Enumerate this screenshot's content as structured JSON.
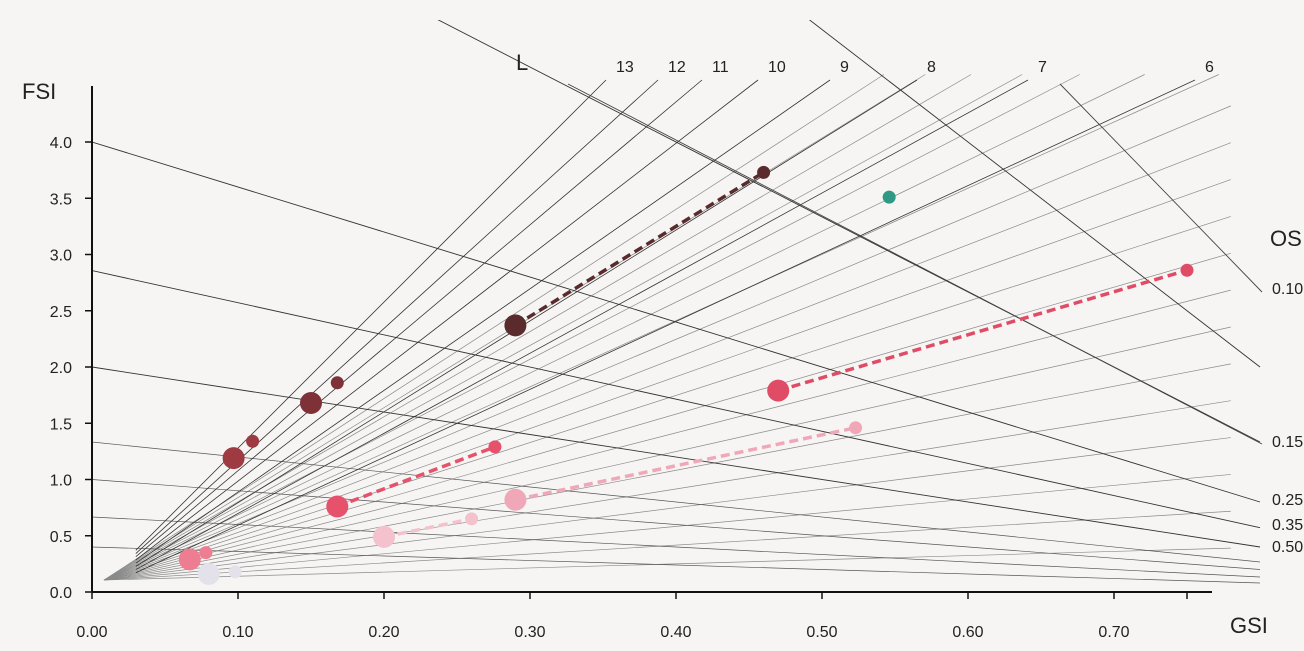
{
  "chart_data": {
    "type": "scatter",
    "title": "",
    "xlabel": "GSI",
    "ylabel": "FSI",
    "xlim": [
      0,
      0.8
    ],
    "ylim": [
      0,
      4.4
    ],
    "x_ticks": [
      "0.00",
      "0.10",
      "0.20",
      "0.30",
      "0.40",
      "0.50",
      "0.60",
      "0.70"
    ],
    "y_ticks": [
      "0.0",
      "0.5",
      "1.0",
      "1.5",
      "2.0",
      "2.5",
      "3.0",
      "3.5",
      "4.0"
    ],
    "L_axis_label": "L",
    "L_lines": [
      {
        "label": "13",
        "value": 13
      },
      {
        "label": "12",
        "value": 12
      },
      {
        "label": "11",
        "value": 11
      },
      {
        "label": "10",
        "value": 10
      },
      {
        "label": "9",
        "value": 9
      },
      {
        "label": "8",
        "value": 8
      },
      {
        "label": "7",
        "value": 7
      },
      {
        "label": "6",
        "value": 6
      }
    ],
    "OSR_axis_label": "OS",
    "OSR_lines": [
      {
        "label": "0.10",
        "value": 0.1
      },
      {
        "label": "0.15",
        "value": 0.15
      },
      {
        "label": "0.25",
        "value": 0.25
      },
      {
        "label": "0.35",
        "value": 0.35
      },
      {
        "label": "0.50",
        "value": 0.5
      }
    ],
    "series": [
      {
        "color": "#5a2a2c",
        "dashed": true,
        "points": [
          {
            "x": 0.29,
            "y": 2.37,
            "size": "large"
          },
          {
            "x": 0.46,
            "y": 3.73,
            "size": "small"
          }
        ]
      },
      {
        "color": "#7e3238",
        "dashed": false,
        "points": [
          {
            "x": 0.15,
            "y": 1.68,
            "size": "large"
          },
          {
            "x": 0.168,
            "y": 1.86,
            "size": "small"
          }
        ]
      },
      {
        "color": "#9e3a42",
        "dashed": false,
        "points": [
          {
            "x": 0.097,
            "y": 1.19,
            "size": "large"
          },
          {
            "x": 0.11,
            "y": 1.34,
            "size": "small"
          }
        ]
      },
      {
        "color": "#e04c66",
        "dashed": true,
        "points": [
          {
            "x": 0.47,
            "y": 1.79,
            "size": "large"
          },
          {
            "x": 0.75,
            "y": 2.86,
            "size": "small"
          }
        ]
      },
      {
        "color": "#e6526c",
        "dashed": true,
        "points": [
          {
            "x": 0.168,
            "y": 0.76,
            "size": "large"
          },
          {
            "x": 0.276,
            "y": 1.29,
            "size": "small"
          }
        ]
      },
      {
        "color": "#f0a8b8",
        "dashed": true,
        "points": [
          {
            "x": 0.29,
            "y": 0.82,
            "size": "large"
          },
          {
            "x": 0.523,
            "y": 1.46,
            "size": "small"
          }
        ]
      },
      {
        "color": "#f4c2cc",
        "dashed": true,
        "points": [
          {
            "x": 0.2,
            "y": 0.49,
            "size": "large"
          },
          {
            "x": 0.26,
            "y": 0.65,
            "size": "small"
          }
        ]
      },
      {
        "color": "#ef7d92",
        "dashed": false,
        "points": [
          {
            "x": 0.067,
            "y": 0.29,
            "size": "large"
          },
          {
            "x": 0.078,
            "y": 0.35,
            "size": "small"
          }
        ]
      },
      {
        "color": "#e3e2ea",
        "dashed": false,
        "points": [
          {
            "x": 0.08,
            "y": 0.16,
            "size": "large"
          },
          {
            "x": 0.098,
            "y": 0.18,
            "size": "small"
          }
        ]
      },
      {
        "color": "#2e9a83",
        "dashed": false,
        "points": [
          {
            "x": 0.546,
            "y": 3.51,
            "size": "small"
          }
        ]
      }
    ]
  }
}
